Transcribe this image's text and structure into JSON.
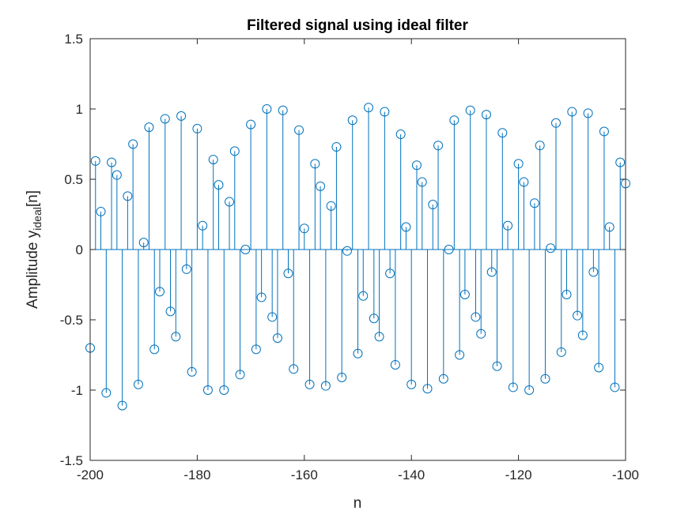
{
  "chart_data": {
    "type": "stem",
    "title": "Filtered signal using ideal filter",
    "xlabel": "n",
    "ylabel": {
      "prefix": "Amplitude y",
      "subscript": "ideal",
      "suffix": "[n]"
    },
    "xlim": [
      -200,
      -100
    ],
    "ylim": [
      -1.5,
      1.5
    ],
    "xticks": [
      -200,
      -180,
      -160,
      -140,
      -120,
      -100
    ],
    "yticks": [
      1.5,
      1,
      0.5,
      0,
      -0.5,
      -1,
      -1.5
    ],
    "xtick_labels": [
      "-200",
      "-180",
      "-160",
      "-140",
      "-120",
      "-100"
    ],
    "ytick_labels": [
      "1.5",
      "1",
      "0.5",
      "0",
      "-0.5",
      "-1",
      "-1.5"
    ],
    "grid": false,
    "series": [
      {
        "color": "#0072BD",
        "x": [
          -200,
          -199,
          -198,
          -197,
          -196,
          -195,
          -194,
          -193,
          -192,
          -191,
          -190,
          -189,
          -188,
          -187,
          -186,
          -185,
          -184,
          -183,
          -182,
          -181,
          -180,
          -179,
          -178,
          -177,
          -176,
          -175,
          -174,
          -173,
          -172,
          -171,
          -170,
          -169,
          -168,
          -167,
          -166,
          -165,
          -164,
          -163,
          -162,
          -161,
          -160,
          -159,
          -158,
          -157,
          -156,
          -155,
          -154,
          -153,
          -152,
          -151,
          -150,
          -149,
          -148,
          -147,
          -146,
          -145,
          -144,
          -143,
          -142,
          -141,
          -140,
          -139,
          -138,
          -137,
          -136,
          -135,
          -134,
          -133,
          -132,
          -131,
          -130,
          -129,
          -128,
          -127,
          -126,
          -125,
          -124,
          -123,
          -122,
          -121,
          -120,
          -119,
          -118,
          -117,
          -116,
          -115,
          -114,
          -113,
          -112,
          -111,
          -110,
          -109,
          -108,
          -107,
          -106,
          -105,
          -104,
          -103,
          -102,
          -101,
          -100
        ],
        "y": [
          -0.7,
          0.63,
          0.27,
          -1.02,
          0.62,
          0.53,
          -1.11,
          0.38,
          0.75,
          -0.96,
          0.05,
          0.87,
          -0.71,
          -0.3,
          0.93,
          -0.44,
          -0.62,
          0.95,
          -0.14,
          -0.87,
          0.86,
          0.17,
          -1.0,
          0.64,
          0.46,
          -1.0,
          0.34,
          0.7,
          -0.89,
          0.0,
          0.89,
          -0.71,
          -0.34,
          1.0,
          -0.48,
          -0.63,
          0.99,
          -0.17,
          -0.85,
          0.85,
          0.15,
          -0.96,
          0.61,
          0.45,
          -0.97,
          0.31,
          0.73,
          -0.91,
          -0.01,
          0.92,
          -0.74,
          -0.33,
          1.01,
          -0.49,
          -0.62,
          0.98,
          -0.17,
          -0.82,
          0.82,
          0.16,
          -0.96,
          0.6,
          0.48,
          -0.99,
          0.32,
          0.74,
          -0.92,
          0.0,
          0.92,
          -0.75,
          -0.32,
          0.99,
          -0.48,
          -0.6,
          0.96,
          -0.16,
          -0.83,
          0.83,
          0.17,
          -0.98,
          0.61,
          0.48,
          -1.0,
          0.33,
          0.74,
          -0.92,
          0.01,
          0.9,
          -0.73,
          -0.32,
          0.98,
          -0.47,
          -0.61,
          0.97,
          -0.16,
          -0.84,
          0.84,
          0.16,
          -0.98,
          0.62,
          0.47
        ]
      }
    ]
  }
}
